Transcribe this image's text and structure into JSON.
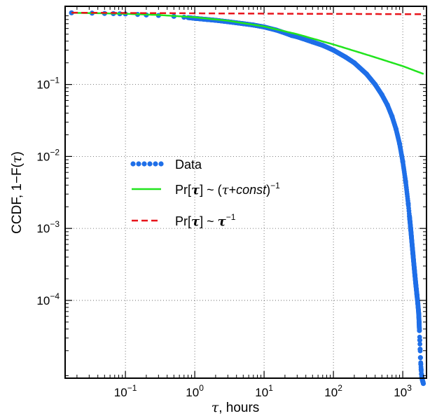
{
  "chart_data": {
    "type": "scatter",
    "xlabel_var": "τ",
    "xlabel_unit": ", hours",
    "ylabel_prefix": "CCDF, 1−F(",
    "ylabel_var": "τ",
    "ylabel_suffix": ")",
    "x_scale": "log",
    "y_scale": "log",
    "xlim": [
      0.0135,
      2200
    ],
    "ylim": [
      8.3e-06,
      1.22
    ],
    "x_ticks": [
      {
        "value": 0.1,
        "base": "10",
        "exp": "−1"
      },
      {
        "value": 1,
        "base": "10",
        "exp": "0"
      },
      {
        "value": 10,
        "base": "10",
        "exp": "1"
      },
      {
        "value": 100,
        "base": "10",
        "exp": "2"
      },
      {
        "value": 1000,
        "base": "10",
        "exp": "3"
      }
    ],
    "y_ticks": [
      {
        "value": 0.1,
        "base": "10",
        "exp": "−1"
      },
      {
        "value": 0.01,
        "base": "10",
        "exp": "−2"
      },
      {
        "value": 0.001,
        "base": "10",
        "exp": "−3"
      },
      {
        "value": 0.0001,
        "base": "10",
        "exp": "−4"
      }
    ],
    "grid": true,
    "legend_position": "center-left",
    "series": [
      {
        "name": "Data",
        "style": "dotted-markers",
        "color": "#1f6fe8",
        "x": [
          0.0167,
          0.033,
          0.05,
          0.067,
          0.083,
          0.1,
          0.15,
          0.2,
          0.3,
          0.5,
          0.7,
          1,
          1.5,
          2,
          3,
          5,
          7,
          10,
          15,
          20,
          25,
          30,
          40,
          50,
          70,
          100,
          150,
          200,
          300,
          400,
          500,
          600,
          700,
          800,
          900,
          1000,
          1100,
          1200,
          1300,
          1400,
          1500,
          1550,
          1600,
          1650,
          1700,
          1720,
          1740,
          1760,
          1780,
          1800,
          1820,
          1840,
          1860,
          1880,
          1900,
          1920,
          1940,
          1960,
          1980
        ],
        "y": [
          0.99,
          0.98,
          0.97,
          0.965,
          0.96,
          0.955,
          0.94,
          0.925,
          0.91,
          0.885,
          0.86,
          0.83,
          0.8,
          0.78,
          0.745,
          0.7,
          0.67,
          0.63,
          0.57,
          0.52,
          0.48,
          0.46,
          0.42,
          0.39,
          0.35,
          0.3,
          0.24,
          0.2,
          0.14,
          0.1,
          0.072,
          0.052,
          0.036,
          0.024,
          0.015,
          0.0085,
          0.0045,
          0.0022,
          0.001,
          0.00045,
          0.00022,
          0.00016,
          0.00012,
          9e-05,
          6.5e-05,
          5e-05,
          3.8e-05,
          2.8e-05,
          2.1e-05,
          1.6e-05,
          1.3e-05,
          1.1e-05,
          9.5e-06,
          8.7e-06,
          8.2e-06,
          7.8e-06,
          7.5e-06,
          7.3e-06,
          7e-06
        ]
      },
      {
        "name": "Pr[τ] ~ (τ+const)⁻¹",
        "style": "solid",
        "color": "#22e41e",
        "x": [
          0.0167,
          0.05,
          0.1,
          0.3,
          1,
          3,
          10,
          30,
          100,
          300,
          1000,
          2000
        ],
        "y": [
          0.99,
          0.975,
          0.96,
          0.925,
          0.86,
          0.77,
          0.64,
          0.5,
          0.36,
          0.26,
          0.18,
          0.14
        ]
      },
      {
        "name": "Pr[τ] ~ τ⁻¹",
        "style": "dashed",
        "color": "#e8141b",
        "x": [
          0.0167,
          0.1,
          1,
          10,
          100,
          1000,
          2000
        ],
        "y": [
          0.995,
          0.985,
          0.975,
          0.965,
          0.957,
          0.95,
          0.948
        ]
      }
    ],
    "legend": [
      {
        "label_text": "Data"
      },
      {
        "label_prefix": "Pr[",
        "label_var": "τ",
        "label_mid": "] ~ (",
        "label_var2": "τ",
        "label_plus": "+",
        "label_const": "const",
        "label_close": ")",
        "label_exp": "−1"
      },
      {
        "label_prefix": "Pr[",
        "label_var": "τ",
        "label_mid": "] ~ ",
        "label_var2": "τ",
        "label_exp": "−1"
      }
    ]
  }
}
